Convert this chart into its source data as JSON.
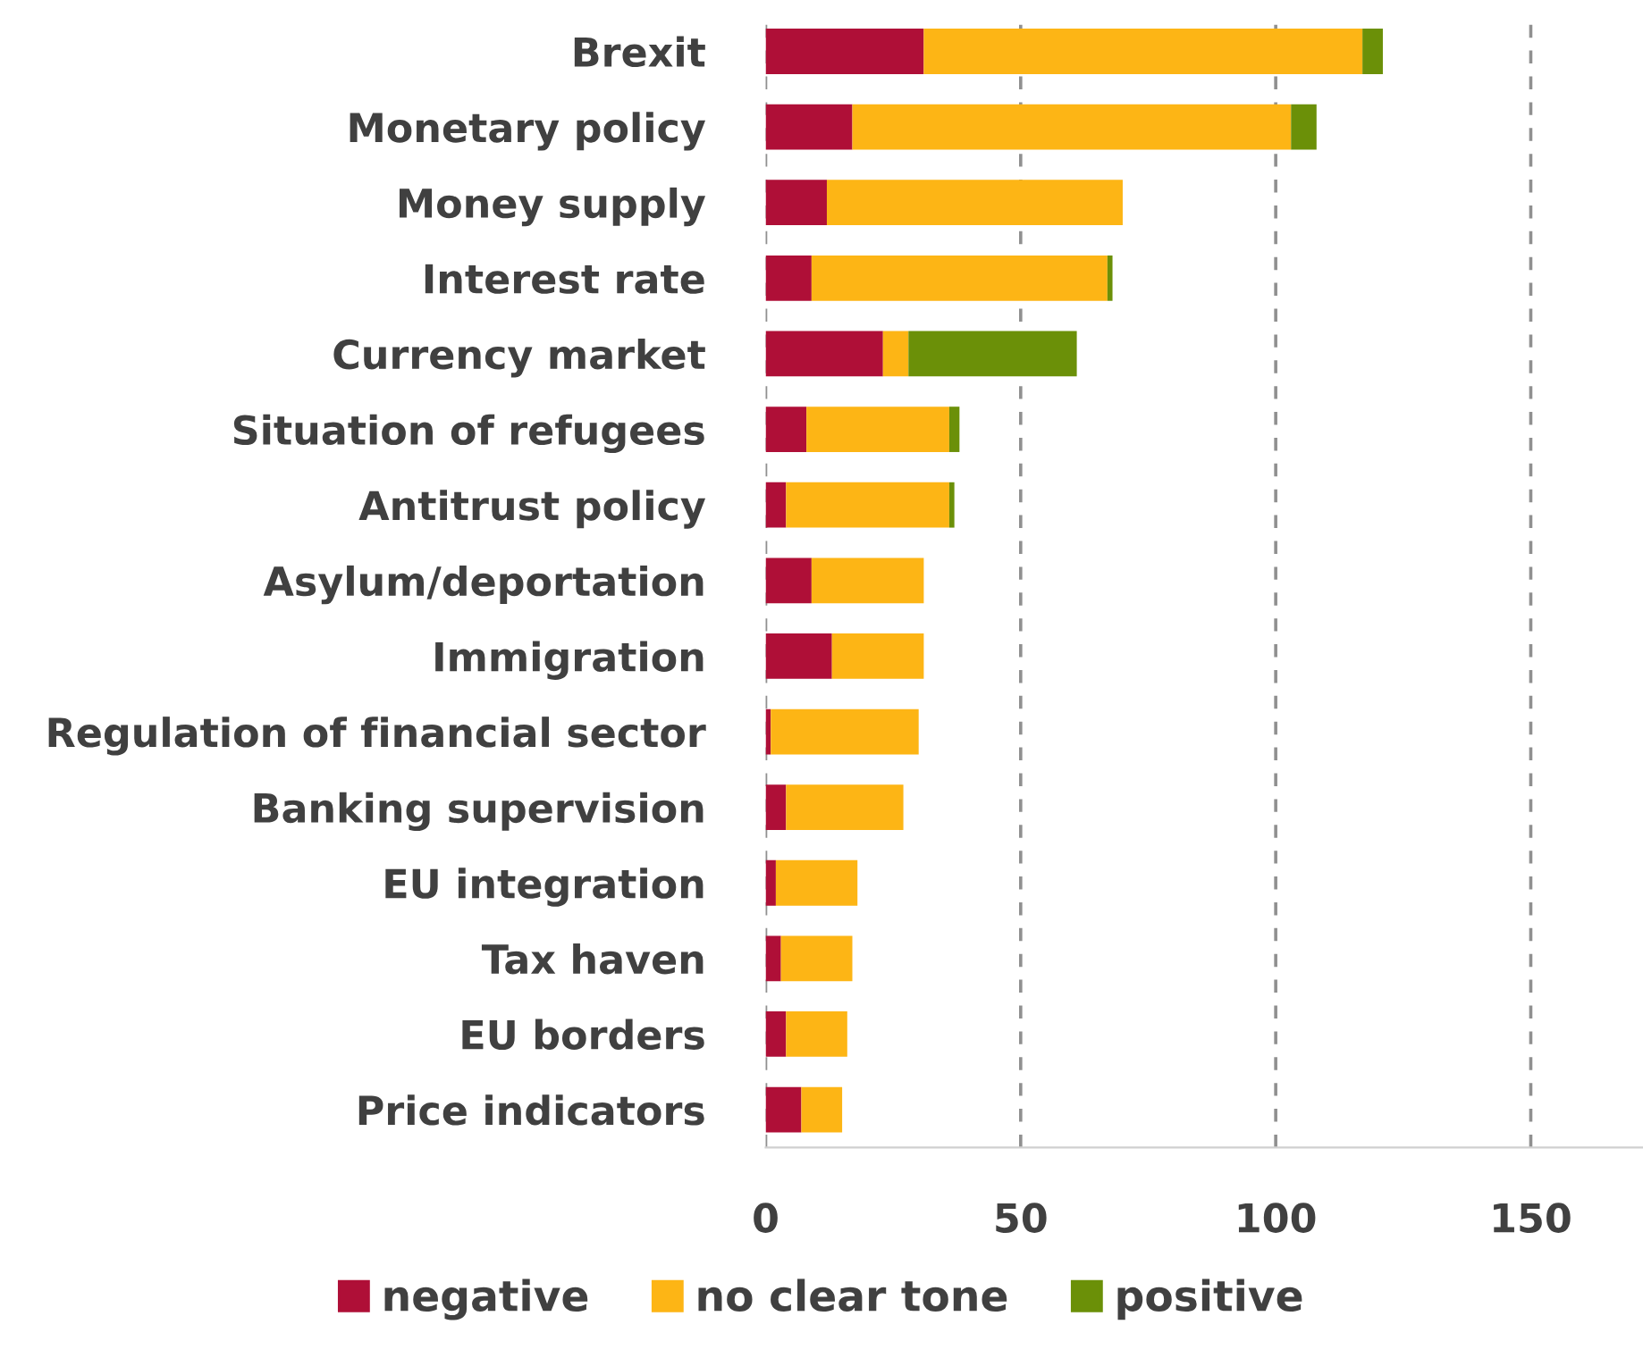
{
  "chart_data": {
    "type": "bar",
    "orientation": "horizontal",
    "stacked": true,
    "categories": [
      "Brexit",
      "Monetary policy",
      "Money supply",
      "Interest rate",
      "Currency market",
      "Situation of refugees",
      "Antitrust policy",
      "Asylum/deportation",
      "Immigration",
      "Regulation of financial sector",
      "Banking supervision",
      "EU integration",
      "Tax haven",
      "EU borders",
      "Price indicators"
    ],
    "series": [
      {
        "name": "negative",
        "color": "#af0f37",
        "values": [
          31,
          17,
          12,
          9,
          23,
          8,
          4,
          9,
          13,
          1,
          4,
          2,
          3,
          4,
          7
        ]
      },
      {
        "name": "no clear tone",
        "color": "#fdb515",
        "values": [
          86,
          86,
          58,
          58,
          5,
          28,
          32,
          22,
          18,
          29,
          23,
          16,
          14,
          12,
          8
        ]
      },
      {
        "name": "positive",
        "color": "#6b9008",
        "values": [
          4,
          5,
          0,
          1,
          33,
          2,
          1,
          0,
          0,
          0,
          0,
          0,
          0,
          0,
          0
        ]
      }
    ],
    "xlim": [
      0,
      172
    ],
    "xticks": [
      0,
      50,
      100,
      150
    ],
    "grid": "x",
    "legend": "bottom"
  }
}
